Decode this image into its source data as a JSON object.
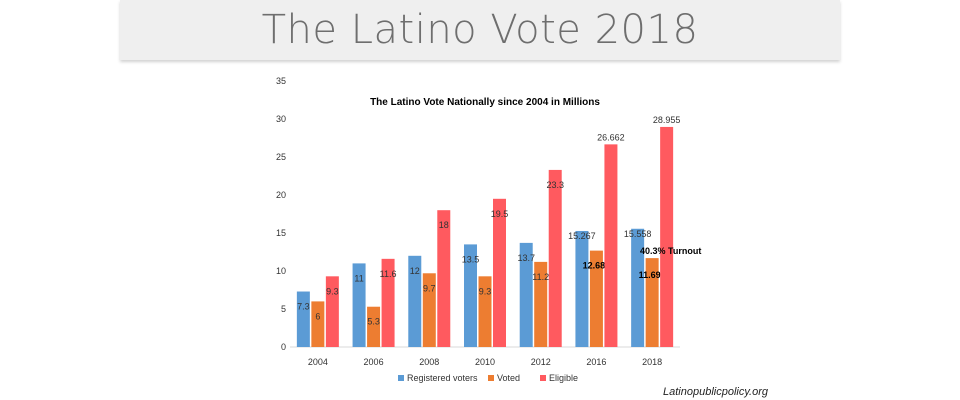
{
  "slide": {
    "title": "The Latino Vote 2018",
    "credit": "Latinopublicpolicy.org"
  },
  "colors": {
    "registered": "#5b9bd5",
    "voted": "#ed7d31",
    "eligible": "#ff5a5f"
  },
  "chart_data": {
    "type": "bar",
    "title": "The Latino Vote Nationally since 2004 in Millions",
    "xlabel": "",
    "ylabel": "",
    "ylim": [
      0,
      35
    ],
    "yticks": [
      0,
      5,
      10,
      15,
      20,
      25,
      30,
      35
    ],
    "grid": false,
    "legend_position": "bottom",
    "categories": [
      "2004",
      "2006",
      "2008",
      "2010",
      "2012",
      "2016",
      "2018"
    ],
    "series": [
      {
        "name": "Registered voters",
        "values": [
          7.3,
          11,
          12,
          13.5,
          13.7,
          15.267,
          15.558
        ],
        "labels": [
          "7.3",
          "11",
          "12",
          "13.5",
          "13.7",
          "15.267",
          "15.558"
        ]
      },
      {
        "name": "Voted",
        "values": [
          6,
          5.3,
          9.7,
          9.3,
          11.2,
          12.682,
          11.695
        ],
        "labels": [
          "6",
          "5.3",
          "9.7",
          "9.3",
          "11.2",
          "12.682",
          "11.695"
        ]
      },
      {
        "name": "Eligible",
        "values": [
          9.3,
          11.6,
          18,
          19.5,
          23.3,
          26.662,
          28.955
        ],
        "labels": [
          "9.3",
          "11.6",
          "18",
          "19.5",
          "23.3",
          "26.662",
          "28.955"
        ]
      }
    ],
    "annotations": [
      "40.3% Turnout"
    ]
  }
}
